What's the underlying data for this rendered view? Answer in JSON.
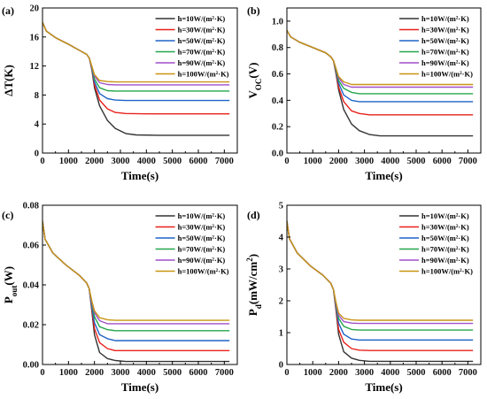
{
  "chart_data": [
    {
      "type": "line",
      "panel_label": "(a)",
      "xlabel": "Time(s)",
      "ylabel": "ΔT(K)",
      "xlim": [
        0,
        7500
      ],
      "ylim": [
        0,
        20
      ],
      "xticks": [
        0,
        1000,
        2000,
        3000,
        4000,
        5000,
        6000,
        7000
      ],
      "yticks": [
        0,
        4,
        8,
        12,
        16,
        20
      ],
      "ytick_labels": [
        "0",
        "4",
        "8",
        "12",
        "16",
        "20"
      ],
      "grid": false,
      "legend_position": "top-right",
      "series": [
        {
          "name": "h=10W/(m²·K)",
          "color": "#333333",
          "x": [
            0,
            150,
            500,
            1000,
            1500,
            1700,
            1800,
            1900,
            2000,
            2200,
            2500,
            2800,
            3200,
            3600,
            4500,
            7200
          ],
          "values": [
            18.0,
            16.8,
            15.9,
            15.0,
            14.0,
            13.6,
            13.1,
            11.5,
            9.0,
            6.5,
            4.5,
            3.4,
            2.7,
            2.5,
            2.45,
            2.45
          ]
        },
        {
          "name": "h=30W/(m²·K)",
          "color": "#e8201a",
          "x": [
            0,
            150,
            500,
            1000,
            1500,
            1700,
            1800,
            1900,
            2000,
            2200,
            2500,
            2800,
            3200,
            4000,
            7200
          ],
          "values": [
            18.0,
            16.8,
            15.9,
            15.0,
            14.0,
            13.6,
            13.1,
            11.6,
            9.4,
            7.3,
            6.1,
            5.6,
            5.45,
            5.4,
            5.4
          ]
        },
        {
          "name": "h=50W/(m²·K)",
          "color": "#1f63c8",
          "x": [
            0,
            150,
            500,
            1000,
            1500,
            1700,
            1800,
            1900,
            2000,
            2200,
            2500,
            2800,
            3200,
            7200
          ],
          "values": [
            18.0,
            16.8,
            15.9,
            15.0,
            14.0,
            13.6,
            13.1,
            11.7,
            9.8,
            8.2,
            7.5,
            7.3,
            7.25,
            7.25
          ]
        },
        {
          "name": "h=70W/(m²·K)",
          "color": "#25a64b",
          "x": [
            0,
            150,
            500,
            1000,
            1500,
            1700,
            1800,
            1900,
            2000,
            2200,
            2500,
            2800,
            7200
          ],
          "values": [
            18.0,
            16.8,
            15.9,
            15.0,
            14.0,
            13.6,
            13.1,
            11.8,
            10.2,
            9.0,
            8.6,
            8.55,
            8.55
          ]
        },
        {
          "name": "h=90W/(m²·K)",
          "color": "#a14fc9",
          "x": [
            0,
            150,
            500,
            1000,
            1500,
            1700,
            1800,
            1900,
            2000,
            2200,
            2500,
            2800,
            7200
          ],
          "values": [
            18.0,
            16.8,
            15.9,
            15.0,
            14.0,
            13.6,
            13.1,
            11.9,
            10.6,
            9.7,
            9.45,
            9.4,
            9.4
          ]
        },
        {
          "name": "h=100W/(m²·K)",
          "color": "#c99512",
          "x": [
            0,
            150,
            500,
            1000,
            1500,
            1700,
            1800,
            1900,
            2000,
            2200,
            2500,
            2800,
            7200
          ],
          "values": [
            18.0,
            16.8,
            15.9,
            15.0,
            14.0,
            13.6,
            13.1,
            12.0,
            10.8,
            10.0,
            9.85,
            9.8,
            9.8
          ]
        }
      ]
    },
    {
      "type": "line",
      "panel_label": "(b)",
      "xlabel": "Time(s)",
      "ylabel": "V",
      "ylabel_sub": "OC",
      "ylabel_suffix": "(V)",
      "xlim": [
        0,
        7500
      ],
      "ylim": [
        0,
        1.1
      ],
      "xticks": [
        0,
        1000,
        2000,
        3000,
        4000,
        5000,
        6000,
        7000
      ],
      "yticks": [
        0.0,
        0.2,
        0.4,
        0.6,
        0.8,
        1.0
      ],
      "ytick_labels": [
        "0.0",
        "0.2",
        "0.4",
        "0.6",
        "0.8",
        "1.0"
      ],
      "grid": false,
      "legend_position": "top-right",
      "series": [
        {
          "name": "h=10W/(m²·K)",
          "color": "#333333",
          "x": [
            0,
            150,
            500,
            1000,
            1500,
            1700,
            1800,
            1900,
            2000,
            2200,
            2500,
            2800,
            3200,
            3600,
            4500,
            7200
          ],
          "values": [
            0.93,
            0.88,
            0.84,
            0.8,
            0.76,
            0.73,
            0.7,
            0.6,
            0.48,
            0.33,
            0.22,
            0.17,
            0.14,
            0.13,
            0.13,
            0.13
          ]
        },
        {
          "name": "h=30W/(m²·K)",
          "color": "#e8201a",
          "x": [
            0,
            150,
            500,
            1000,
            1500,
            1700,
            1800,
            1900,
            2000,
            2200,
            2500,
            2800,
            3200,
            4000,
            7200
          ],
          "values": [
            0.93,
            0.88,
            0.84,
            0.8,
            0.76,
            0.73,
            0.7,
            0.61,
            0.5,
            0.39,
            0.32,
            0.3,
            0.29,
            0.29,
            0.29
          ]
        },
        {
          "name": "h=50W/(m²·K)",
          "color": "#1f63c8",
          "x": [
            0,
            150,
            500,
            1000,
            1500,
            1700,
            1800,
            1900,
            2000,
            2200,
            2500,
            2800,
            3200,
            7200
          ],
          "values": [
            0.93,
            0.88,
            0.84,
            0.8,
            0.76,
            0.73,
            0.7,
            0.62,
            0.53,
            0.44,
            0.4,
            0.39,
            0.39,
            0.39
          ]
        },
        {
          "name": "h=70W/(m²·K)",
          "color": "#25a64b",
          "x": [
            0,
            150,
            500,
            1000,
            1500,
            1700,
            1800,
            1900,
            2000,
            2200,
            2500,
            2800,
            7200
          ],
          "values": [
            0.93,
            0.88,
            0.84,
            0.8,
            0.76,
            0.73,
            0.7,
            0.63,
            0.55,
            0.49,
            0.46,
            0.45,
            0.45
          ]
        },
        {
          "name": "h=90W/(m²·K)",
          "color": "#a14fc9",
          "x": [
            0,
            150,
            500,
            1000,
            1500,
            1700,
            1800,
            1900,
            2000,
            2200,
            2500,
            2800,
            7200
          ],
          "values": [
            0.93,
            0.88,
            0.84,
            0.8,
            0.76,
            0.73,
            0.7,
            0.64,
            0.57,
            0.52,
            0.5,
            0.5,
            0.5
          ]
        },
        {
          "name": "h=100W/(m²·K)",
          "color": "#c99512",
          "x": [
            0,
            150,
            500,
            1000,
            1500,
            1700,
            1800,
            1900,
            2000,
            2200,
            2500,
            2800,
            7200
          ],
          "values": [
            0.93,
            0.88,
            0.84,
            0.8,
            0.76,
            0.73,
            0.7,
            0.64,
            0.58,
            0.54,
            0.52,
            0.52,
            0.52
          ]
        }
      ]
    },
    {
      "type": "line",
      "panel_label": "(c)",
      "xlabel": "Time(s)",
      "ylabel": "P",
      "ylabel_sub": "out",
      "ylabel_suffix": "(W)",
      "xlim": [
        0,
        7500
      ],
      "ylim": [
        0,
        0.08
      ],
      "xticks": [
        0,
        1000,
        2000,
        3000,
        4000,
        5000,
        6000,
        7000
      ],
      "yticks": [
        0.0,
        0.02,
        0.04,
        0.06,
        0.08
      ],
      "ytick_labels": [
        "0.00",
        "0.02",
        "0.04",
        "0.06",
        "0.08"
      ],
      "grid": false,
      "legend_position": "top-right",
      "series": [
        {
          "name": "h=10W/(m²·K)",
          "color": "#333333",
          "x": [
            0,
            100,
            400,
            900,
            1400,
            1700,
            1800,
            1900,
            2000,
            2200,
            2500,
            2800,
            3200,
            4000,
            7200
          ],
          "values": [
            0.072,
            0.063,
            0.056,
            0.05,
            0.045,
            0.041,
            0.038,
            0.027,
            0.015,
            0.006,
            0.003,
            0.002,
            0.0015,
            0.0015,
            0.0015
          ]
        },
        {
          "name": "h=30W/(m²·K)",
          "color": "#e8201a",
          "x": [
            0,
            100,
            400,
            900,
            1400,
            1700,
            1800,
            1900,
            2000,
            2200,
            2500,
            2800,
            3200,
            7200
          ],
          "values": [
            0.072,
            0.063,
            0.056,
            0.05,
            0.045,
            0.041,
            0.038,
            0.028,
            0.018,
            0.011,
            0.008,
            0.007,
            0.007,
            0.007
          ]
        },
        {
          "name": "h=50W/(m²·K)",
          "color": "#1f63c8",
          "x": [
            0,
            100,
            400,
            900,
            1400,
            1700,
            1800,
            1900,
            2000,
            2200,
            2500,
            2800,
            7200
          ],
          "values": [
            0.072,
            0.063,
            0.056,
            0.05,
            0.045,
            0.041,
            0.038,
            0.029,
            0.021,
            0.015,
            0.013,
            0.012,
            0.012
          ]
        },
        {
          "name": "h=70W/(m²·K)",
          "color": "#25a64b",
          "x": [
            0,
            100,
            400,
            900,
            1400,
            1700,
            1800,
            1900,
            2000,
            2200,
            2500,
            2800,
            7200
          ],
          "values": [
            0.072,
            0.063,
            0.056,
            0.05,
            0.045,
            0.041,
            0.038,
            0.03,
            0.024,
            0.019,
            0.0175,
            0.017,
            0.017
          ]
        },
        {
          "name": "h=90W/(m²·K)",
          "color": "#a14fc9",
          "x": [
            0,
            100,
            400,
            900,
            1400,
            1700,
            1800,
            1900,
            2000,
            2200,
            2500,
            2800,
            7200
          ],
          "values": [
            0.072,
            0.063,
            0.056,
            0.05,
            0.045,
            0.041,
            0.038,
            0.031,
            0.026,
            0.022,
            0.0205,
            0.0205,
            0.0205
          ]
        },
        {
          "name": "h=100W/(m²·K)",
          "color": "#c99512",
          "x": [
            0,
            100,
            400,
            900,
            1400,
            1700,
            1800,
            1900,
            2000,
            2200,
            2500,
            2800,
            7200
          ],
          "values": [
            0.072,
            0.063,
            0.056,
            0.05,
            0.045,
            0.041,
            0.038,
            0.032,
            0.027,
            0.0235,
            0.0225,
            0.0222,
            0.0222
          ]
        }
      ]
    },
    {
      "type": "line",
      "panel_label": "(d)",
      "xlabel": "Time(s)",
      "ylabel": "P",
      "ylabel_sub": "d",
      "ylabel_suffix": "(mW/cm",
      "ylabel_sup": "2",
      "ylabel_end": ")",
      "xlim": [
        0,
        7500
      ],
      "ylim": [
        0,
        5
      ],
      "xticks": [
        0,
        1000,
        2000,
        3000,
        4000,
        5000,
        6000,
        7000
      ],
      "yticks": [
        0,
        1,
        2,
        3,
        4,
        5
      ],
      "ytick_labels": [
        "0",
        "1",
        "2",
        "3",
        "4",
        "5"
      ],
      "grid": false,
      "legend_position": "top-right",
      "series": [
        {
          "name": "h=10W/(m²·K)",
          "color": "#333333",
          "x": [
            0,
            100,
            400,
            900,
            1400,
            1700,
            1800,
            1900,
            2000,
            2200,
            2500,
            2800,
            3200,
            4000,
            7200
          ],
          "values": [
            4.5,
            3.95,
            3.5,
            3.1,
            2.8,
            2.55,
            2.35,
            1.7,
            0.95,
            0.4,
            0.2,
            0.13,
            0.1,
            0.1,
            0.1
          ]
        },
        {
          "name": "h=30W/(m²·K)",
          "color": "#e8201a",
          "x": [
            0,
            100,
            400,
            900,
            1400,
            1700,
            1800,
            1900,
            2000,
            2200,
            2500,
            2800,
            3200,
            7200
          ],
          "values": [
            4.5,
            3.95,
            3.5,
            3.1,
            2.8,
            2.55,
            2.35,
            1.75,
            1.1,
            0.7,
            0.5,
            0.45,
            0.44,
            0.44
          ]
        },
        {
          "name": "h=50W/(m²·K)",
          "color": "#1f63c8",
          "x": [
            0,
            100,
            400,
            900,
            1400,
            1700,
            1800,
            1900,
            2000,
            2200,
            2500,
            2800,
            7200
          ],
          "values": [
            4.5,
            3.95,
            3.5,
            3.1,
            2.8,
            2.55,
            2.35,
            1.8,
            1.3,
            0.95,
            0.8,
            0.77,
            0.77
          ]
        },
        {
          "name": "h=70W/(m²·K)",
          "color": "#25a64b",
          "x": [
            0,
            100,
            400,
            900,
            1400,
            1700,
            1800,
            1900,
            2000,
            2200,
            2500,
            2800,
            7200
          ],
          "values": [
            4.5,
            3.95,
            3.5,
            3.1,
            2.8,
            2.55,
            2.35,
            1.85,
            1.45,
            1.2,
            1.1,
            1.08,
            1.08
          ]
        },
        {
          "name": "h=90W/(m²·K)",
          "color": "#a14fc9",
          "x": [
            0,
            100,
            400,
            900,
            1400,
            1700,
            1800,
            1900,
            2000,
            2200,
            2500,
            2800,
            7200
          ],
          "values": [
            4.5,
            3.95,
            3.5,
            3.1,
            2.8,
            2.55,
            2.35,
            1.9,
            1.55,
            1.35,
            1.3,
            1.29,
            1.29
          ]
        },
        {
          "name": "h=100W/(m²·K)",
          "color": "#c99512",
          "x": [
            0,
            100,
            400,
            900,
            1400,
            1700,
            1800,
            1900,
            2000,
            2200,
            2500,
            2800,
            7200
          ],
          "values": [
            4.5,
            3.95,
            3.5,
            3.1,
            2.8,
            2.55,
            2.35,
            1.95,
            1.62,
            1.45,
            1.4,
            1.39,
            1.39
          ]
        }
      ]
    }
  ]
}
